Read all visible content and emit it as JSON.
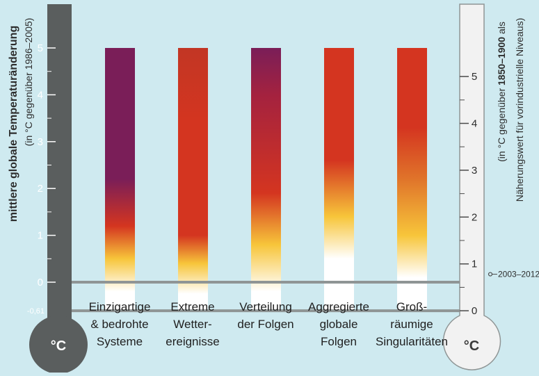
{
  "chart_data": {
    "type": "bar",
    "title": "",
    "categories": [
      [
        "Einzigartige",
        "& bedrohte",
        "Systeme"
      ],
      [
        "Extreme",
        "Wetter-",
        "ereignisse"
      ],
      [
        "Verteilung",
        "der Folgen"
      ],
      [
        "Aggregierte",
        "globale",
        "Folgen"
      ],
      [
        "Groß-",
        "räumige",
        "Singularitäten"
      ]
    ],
    "values": [
      5,
      5,
      5,
      5,
      5
    ],
    "bar_base": -0.61,
    "left_axis": {
      "label": "mittlere globale Temperaturänderung",
      "sublabel": "(in °C gegenüber 1986–2005)",
      "ticks": [
        "0",
        "1",
        "2",
        "3",
        "4",
        "5"
      ],
      "extra_tick": "-0,61",
      "range": [
        -0.61,
        5.8
      ]
    },
    "right_axis": {
      "label_pre": "(in °C gegenüber ",
      "label_bold": "1850–1900",
      "label_post": " als",
      "label_line2": "Näherungswert für vorindustrielle Niveaus)",
      "ticks": [
        "0",
        "1",
        "2",
        "3",
        "4",
        "5"
      ],
      "offset": 0.61,
      "marker_label": "2003–2012",
      "marker_value": 0.78
    },
    "unit_symbol": "°C",
    "colors": {
      "background": "#cfeaf0",
      "left_thermometer": "#5a5e5e",
      "white": "#ffffff",
      "yellow": "#f7c53a",
      "red": "#d43520",
      "purple": "#7a1e58",
      "reference_line": "#8f9595"
    },
    "bar_stops": [
      [
        [
          -0.61,
          "#ffffff"
        ],
        [
          -0.2,
          "#ffffff"
        ],
        [
          0.5,
          "#f7c53a"
        ],
        [
          1.2,
          "#d43520"
        ],
        [
          2.2,
          "#7a1e58"
        ],
        [
          5,
          "#7a1e58"
        ]
      ],
      [
        [
          -0.61,
          "#ffffff"
        ],
        [
          -0.25,
          "#ffffff"
        ],
        [
          0.4,
          "#f7c53a"
        ],
        [
          1.0,
          "#d43520"
        ],
        [
          3.4,
          "#d43520"
        ],
        [
          5,
          "#c23624"
        ]
      ],
      [
        [
          -0.61,
          "#ffffff"
        ],
        [
          -0.2,
          "#ffffff"
        ],
        [
          0.8,
          "#f7c53a"
        ],
        [
          1.9,
          "#d43520"
        ],
        [
          4.0,
          "#a4223f"
        ],
        [
          5,
          "#7a1e58"
        ]
      ],
      [
        [
          -0.61,
          "#ffffff"
        ],
        [
          0.5,
          "#ffffff"
        ],
        [
          1.4,
          "#f7c53a"
        ],
        [
          2.6,
          "#d43520"
        ],
        [
          5,
          "#d43520"
        ]
      ],
      [
        [
          -0.61,
          "#ffffff"
        ],
        [
          0.1,
          "#ffffff"
        ],
        [
          1.0,
          "#f7c53a"
        ],
        [
          2.2,
          "#e0742a"
        ],
        [
          3.3,
          "#d43520"
        ],
        [
          5,
          "#d43520"
        ]
      ]
    ]
  }
}
